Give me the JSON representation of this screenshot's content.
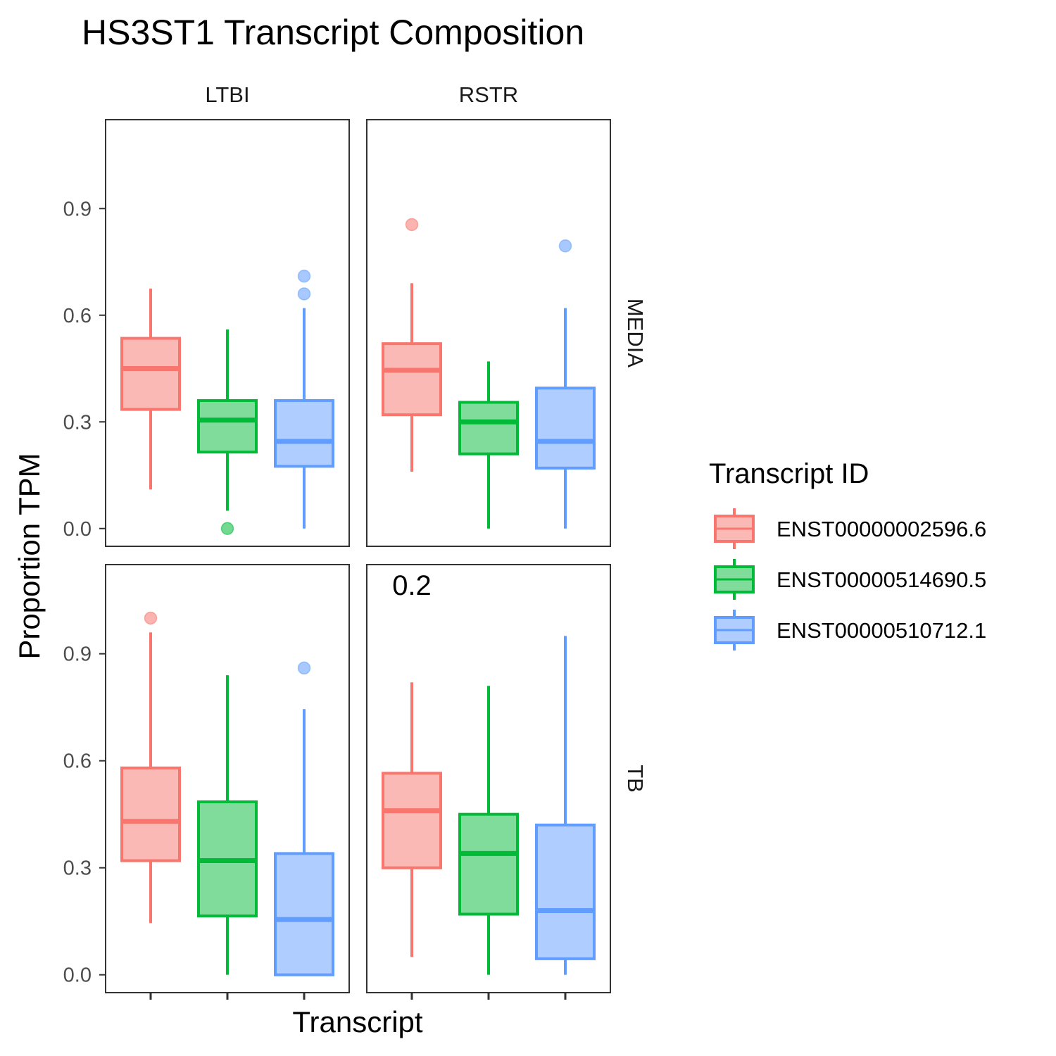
{
  "chart_data": {
    "type": "box",
    "title": "HS3ST1 Transcript Composition",
    "xlabel": "Transcript",
    "ylabel": "Proportion TPM",
    "ylim": [
      -0.05,
      1.15
    ],
    "yticks": [
      0.0,
      0.3,
      0.6,
      0.9
    ],
    "ytick_labels": [
      "0.0",
      "0.3",
      "0.6",
      "0.9"
    ],
    "grid": false,
    "legend": {
      "title": "Transcript ID",
      "position": "right",
      "entries": [
        "ENST00000002596.6",
        "ENST00000514690.5",
        "ENST00000510712.1"
      ]
    },
    "colors": [
      "#F8766D",
      "#00BA38",
      "#619CFF"
    ],
    "fill_colors": [
      "#FBB9B5",
      "#80DC9B",
      "#B0CDFF"
    ],
    "facet_cols": [
      "LTBI",
      "RSTR"
    ],
    "facet_rows": [
      "MEDIA",
      "TB"
    ],
    "panels": [
      {
        "col": "LTBI",
        "row": "MEDIA",
        "annotation": "",
        "boxes": [
          {
            "series": "ENST00000002596.6",
            "lower": 0.11,
            "q1": 0.335,
            "median": 0.45,
            "q3": 0.535,
            "upper": 0.675,
            "outliers": []
          },
          {
            "series": "ENST00000514690.5",
            "lower": 0.05,
            "q1": 0.215,
            "median": 0.305,
            "q3": 0.36,
            "upper": 0.56,
            "outliers": [
              0.0
            ]
          },
          {
            "series": "ENST00000510712.1",
            "lower": 0.0,
            "q1": 0.175,
            "median": 0.245,
            "q3": 0.36,
            "upper": 0.62,
            "outliers": [
              0.66,
              0.71
            ]
          }
        ]
      },
      {
        "col": "RSTR",
        "row": "MEDIA",
        "annotation": "",
        "boxes": [
          {
            "series": "ENST00000002596.6",
            "lower": 0.16,
            "q1": 0.32,
            "median": 0.445,
            "q3": 0.52,
            "upper": 0.69,
            "outliers": [
              0.855
            ]
          },
          {
            "series": "ENST00000514690.5",
            "lower": 0.0,
            "q1": 0.21,
            "median": 0.3,
            "q3": 0.355,
            "upper": 0.47,
            "outliers": []
          },
          {
            "series": "ENST00000510712.1",
            "lower": 0.0,
            "q1": 0.17,
            "median": 0.245,
            "q3": 0.395,
            "upper": 0.62,
            "outliers": [
              0.795
            ]
          }
        ]
      },
      {
        "col": "LTBI",
        "row": "TB",
        "annotation": "",
        "boxes": [
          {
            "series": "ENST00000002596.6",
            "lower": 0.145,
            "q1": 0.32,
            "median": 0.43,
            "q3": 0.58,
            "upper": 0.96,
            "outliers": [
              1.0
            ]
          },
          {
            "series": "ENST00000514690.5",
            "lower": 0.0,
            "q1": 0.165,
            "median": 0.32,
            "q3": 0.485,
            "upper": 0.84,
            "outliers": []
          },
          {
            "series": "ENST00000510712.1",
            "lower": 0.0,
            "q1": 0.0,
            "median": 0.155,
            "q3": 0.34,
            "upper": 0.745,
            "outliers": [
              0.86
            ]
          }
        ]
      },
      {
        "col": "RSTR",
        "row": "TB",
        "annotation": "0.2",
        "boxes": [
          {
            "series": "ENST00000002596.6",
            "lower": 0.05,
            "q1": 0.3,
            "median": 0.46,
            "q3": 0.565,
            "upper": 0.82,
            "outliers": []
          },
          {
            "series": "ENST00000514690.5",
            "lower": 0.0,
            "q1": 0.17,
            "median": 0.34,
            "q3": 0.45,
            "upper": 0.81,
            "outliers": []
          },
          {
            "series": "ENST00000510712.1",
            "lower": 0.0,
            "q1": 0.045,
            "median": 0.18,
            "q3": 0.42,
            "upper": 0.95,
            "outliers": []
          }
        ]
      }
    ]
  }
}
